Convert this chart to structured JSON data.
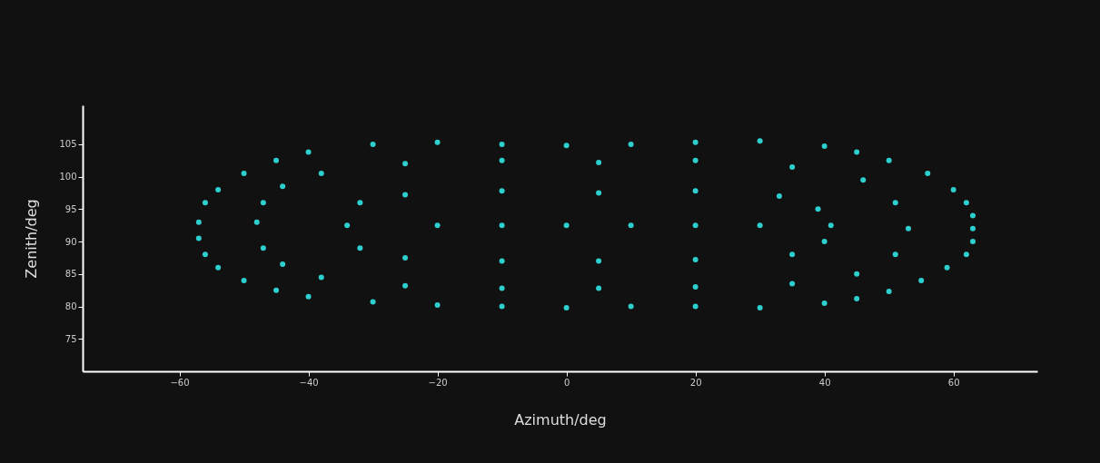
{
  "chart_data": {
    "type": "scatter",
    "xlabel": "Azimuth/deg",
    "ylabel": "Zenith/deg",
    "xlim": [
      -75,
      73
    ],
    "ylim": [
      70,
      111
    ],
    "xticks": [
      -60,
      -40,
      -20,
      0,
      20,
      40,
      60
    ],
    "yticks": [
      75,
      80,
      85,
      90,
      95,
      100,
      105
    ],
    "grid": false,
    "marker": "circle",
    "series": [
      {
        "color": "#2ecfcf",
        "x": [
          -57,
          -57,
          -56,
          -54,
          -50,
          -45,
          -40,
          -30,
          -20,
          -10,
          0,
          10,
          20,
          30,
          40,
          45,
          50,
          55,
          59,
          62,
          63,
          63,
          63,
          62,
          60,
          56,
          50,
          45,
          40,
          30,
          20,
          10,
          0,
          -10,
          -20,
          -30,
          -40,
          -45,
          -50,
          -54,
          -56,
          -48,
          -47,
          -44,
          -38,
          -25,
          -10,
          5,
          20,
          35,
          45,
          51,
          53,
          51,
          46,
          35,
          20,
          5,
          -10,
          -25,
          -38,
          -44,
          -47,
          -34,
          -32,
          -25,
          -10,
          5,
          20,
          35,
          40,
          41,
          39,
          33,
          20,
          5,
          -10,
          -25,
          -32,
          -20,
          -10,
          0,
          10,
          20,
          30
        ],
        "values": [
          93,
          90.5,
          88,
          86,
          84,
          82.5,
          81.5,
          80.7,
          80.2,
          80,
          79.8,
          80,
          80,
          79.8,
          80.5,
          81.2,
          82.3,
          84,
          86,
          88,
          90,
          92,
          94,
          96,
          98,
          100.5,
          102.5,
          103.8,
          104.7,
          105.5,
          105.3,
          105,
          104.8,
          105,
          105.3,
          105,
          103.8,
          102.5,
          100.5,
          98,
          96,
          93,
          89,
          86.5,
          84.5,
          83.2,
          82.8,
          82.8,
          83,
          83.5,
          85,
          88,
          92,
          96,
          99.5,
          101.5,
          102.5,
          102.2,
          102.5,
          102,
          100.5,
          98.5,
          96,
          92.5,
          89,
          87.5,
          87,
          87,
          87.2,
          88,
          90,
          92.5,
          95,
          97,
          97.8,
          97.5,
          97.8,
          97.2,
          96,
          92.5,
          92.5,
          92.5,
          92.5,
          92.5,
          92.5
        ]
      }
    ]
  }
}
